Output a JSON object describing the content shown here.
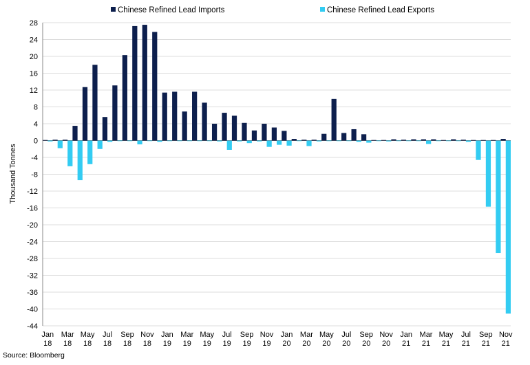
{
  "chart_data": {
    "type": "bar",
    "title": "",
    "xlabel": "",
    "ylabel": "Thousand Tonnes",
    "ylim": [
      -44,
      28
    ],
    "yticks": [
      28,
      24,
      20,
      16,
      12,
      8,
      4,
      0,
      -4,
      -8,
      -12,
      -16,
      -20,
      -24,
      -28,
      -32,
      -36,
      -40,
      -44
    ],
    "grid": true,
    "legend_position": "top",
    "categories": [
      "Jan-18",
      "Feb-18",
      "Mar-18",
      "Apr-18",
      "May-18",
      "Jun-18",
      "Jul-18",
      "Aug-18",
      "Sep-18",
      "Oct-18",
      "Nov-18",
      "Dec-18",
      "Jan-19",
      "Feb-19",
      "Mar-19",
      "Apr-19",
      "May-19",
      "Jun-19",
      "Jul-19",
      "Aug-19",
      "Sep-19",
      "Oct-19",
      "Nov-19",
      "Dec-19",
      "Jan-20",
      "Feb-20",
      "Mar-20",
      "Apr-20",
      "May-20",
      "Jun-20",
      "Jul-20",
      "Aug-20",
      "Sep-20",
      "Oct-20",
      "Nov-20",
      "Dec-20",
      "Jan-21",
      "Feb-21",
      "Mar-21",
      "Apr-21",
      "May-21",
      "Jun-21",
      "Jul-21",
      "Aug-21",
      "Sep-21",
      "Oct-21",
      "Nov-21"
    ],
    "xtick_labels": [
      {
        "index": 0,
        "line1": "Jan",
        "line2": "18"
      },
      {
        "index": 2,
        "line1": "Mar",
        "line2": "18"
      },
      {
        "index": 4,
        "line1": "May",
        "line2": "18"
      },
      {
        "index": 6,
        "line1": "Jul",
        "line2": "18"
      },
      {
        "index": 8,
        "line1": "Sep",
        "line2": "18"
      },
      {
        "index": 10,
        "line1": "Nov",
        "line2": "18"
      },
      {
        "index": 12,
        "line1": "Jan",
        "line2": "19"
      },
      {
        "index": 14,
        "line1": "Mar",
        "line2": "19"
      },
      {
        "index": 16,
        "line1": "May",
        "line2": "19"
      },
      {
        "index": 18,
        "line1": "Jul",
        "line2": "19"
      },
      {
        "index": 20,
        "line1": "Sep",
        "line2": "19"
      },
      {
        "index": 22,
        "line1": "Nov",
        "line2": "19"
      },
      {
        "index": 24,
        "line1": "Jan",
        "line2": "20"
      },
      {
        "index": 26,
        "line1": "Mar",
        "line2": "20"
      },
      {
        "index": 28,
        "line1": "May",
        "line2": "20"
      },
      {
        "index": 30,
        "line1": "Jul",
        "line2": "20"
      },
      {
        "index": 32,
        "line1": "Sep",
        "line2": "20"
      },
      {
        "index": 34,
        "line1": "Nov",
        "line2": "20"
      },
      {
        "index": 36,
        "line1": "Jan",
        "line2": "21"
      },
      {
        "index": 38,
        "line1": "Mar",
        "line2": "21"
      },
      {
        "index": 40,
        "line1": "May",
        "line2": "21"
      },
      {
        "index": 42,
        "line1": "Jul",
        "line2": "21"
      },
      {
        "index": 44,
        "line1": "Sep",
        "line2": "21"
      },
      {
        "index": 46,
        "line1": "Nov",
        "line2": "21"
      }
    ],
    "series": [
      {
        "name": "Chinese Refined Lead Imports",
        "color": "#0d1f4d",
        "values": [
          0.1,
          0.2,
          0.2,
          3.5,
          12.7,
          18.0,
          5.6,
          13.1,
          20.3,
          27.2,
          27.5,
          25.8,
          11.4,
          11.6,
          6.9,
          11.6,
          9.0,
          4.0,
          6.6,
          5.9,
          4.2,
          2.4,
          4.0,
          3.1,
          2.3,
          0.4,
          0.2,
          0.2,
          1.6,
          9.9,
          1.8,
          2.7,
          1.5,
          0.1,
          0.1,
          0.3,
          0.2,
          0.3,
          0.3,
          0.3,
          0.1,
          0.3,
          0.2,
          0.1,
          0.1,
          0.1,
          0.4
        ]
      },
      {
        "name": "Chinese Refined Lead Exports",
        "color": "#33ccf2",
        "values": [
          -0.2,
          -1.8,
          -6.1,
          -9.4,
          -5.6,
          -2.0,
          -0.3,
          -0.1,
          -0.1,
          -0.9,
          -0.1,
          -0.3,
          -0.1,
          -0.1,
          -0.1,
          -0.1,
          -0.1,
          -0.2,
          -2.2,
          -0.2,
          -0.6,
          -0.2,
          -1.5,
          -1.0,
          -1.2,
          -0.1,
          -1.3,
          -0.2,
          -0.1,
          -0.1,
          -0.1,
          -0.3,
          -0.5,
          -0.1,
          -0.2,
          -0.1,
          -0.1,
          -0.1,
          -0.8,
          -0.1,
          -0.1,
          -0.1,
          -0.3,
          -4.6,
          -15.7,
          -26.7,
          -41.1
        ]
      }
    ]
  },
  "footer": {
    "source": "Source: Bloomberg"
  }
}
